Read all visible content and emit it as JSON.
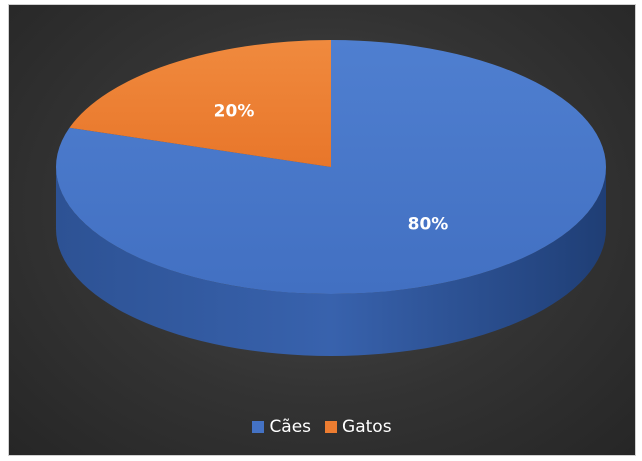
{
  "chart_data": {
    "type": "pie",
    "style": "3d",
    "categories": [
      "Cães",
      "Gatos"
    ],
    "values": [
      80,
      20
    ],
    "data_labels": [
      "80%",
      "20%"
    ],
    "colors": [
      "#4472C4",
      "#ED7D31"
    ],
    "legend_position": "bottom",
    "background": "#333333"
  }
}
